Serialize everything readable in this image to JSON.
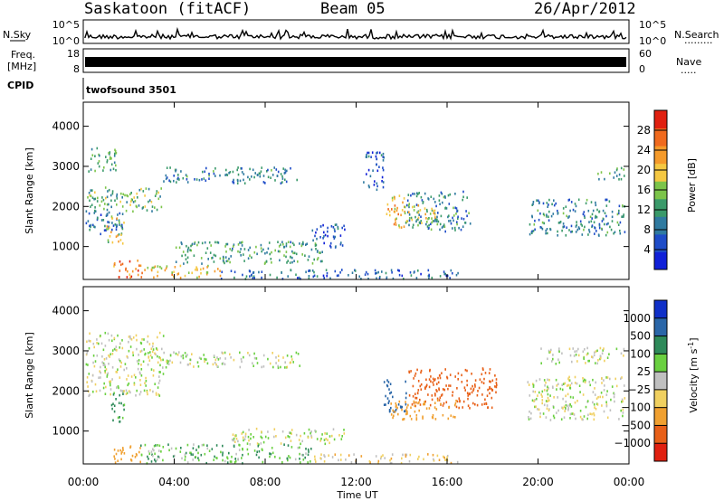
{
  "header": {
    "station": "Saskatoon (fitACF)",
    "beam": "Beam 05",
    "date": "26/Apr/2012"
  },
  "noise_panel": {
    "left_label": "N.Sky",
    "right_label": "N.Search",
    "right_dots": "·········",
    "left_ticks": [
      "10^5",
      "10^0"
    ],
    "right_ticks": [
      "10^5",
      "10^0"
    ]
  },
  "freq_panel": {
    "left_label_1": "Freq.",
    "left_label_2": "[MHz]",
    "right_label": "Nave",
    "right_dots": "·····",
    "left_ticks": [
      "18",
      "8"
    ],
    "right_ticks": [
      "60",
      "0"
    ]
  },
  "cpid_panel": {
    "label": "CPID",
    "value": "twofsound 3501"
  },
  "colors": {
    "power_scale": [
      "#1020d8",
      "#1e4cc8",
      "#2f7aa0",
      "#3a9a6a",
      "#7cc44a",
      "#f5c842",
      "#f59a2a",
      "#f06a1e",
      "#e02010"
    ],
    "velocity_scale": [
      "#1030c8",
      "#2a66a8",
      "#2e8a5a",
      "#6ad040",
      "#c0c0c0",
      "#f0d060",
      "#f0a030",
      "#e86018",
      "#e02010"
    ]
  },
  "chart_data": [
    {
      "type": "heatmap",
      "title": "",
      "ylabel": "Slant Range [km]",
      "xlabel": "",
      "ylim": [
        180,
        4600
      ],
      "yticks": [
        1000,
        2000,
        3000,
        4000
      ],
      "y_tick_labels": [
        "1000",
        "2000",
        "3000",
        "4000"
      ],
      "xlim": [
        0,
        24
      ],
      "colorbar": {
        "label": "Power [dB]",
        "range": [
          0,
          32
        ],
        "ticks": [
          4,
          8,
          12,
          16,
          20,
          24,
          28
        ],
        "tick_labels": [
          "4",
          "8",
          "12",
          "16",
          "20",
          "24",
          "28"
        ]
      },
      "regions": [
        {
          "t0": 0.2,
          "t1": 1.5,
          "r0": 2900,
          "r1": 3500,
          "power": 12
        },
        {
          "t0": 0.1,
          "t1": 3.5,
          "r0": 1900,
          "r1": 2500,
          "power": 14
        },
        {
          "t0": 0.1,
          "t1": 1.8,
          "r0": 1300,
          "r1": 1900,
          "power": 8
        },
        {
          "t0": 1.0,
          "t1": 1.8,
          "r0": 1100,
          "r1": 1800,
          "power": 18
        },
        {
          "t0": 1.3,
          "t1": 2.6,
          "r0": 250,
          "r1": 700,
          "power": 26
        },
        {
          "t0": 2.6,
          "t1": 6.0,
          "r0": 250,
          "r1": 550,
          "power": 20
        },
        {
          "t0": 6.0,
          "t1": 16.5,
          "r0": 220,
          "r1": 450,
          "power": 8
        },
        {
          "t0": 3.5,
          "t1": 9.5,
          "r0": 2600,
          "r1": 3000,
          "power": 10
        },
        {
          "t0": 4.0,
          "t1": 10.5,
          "r0": 600,
          "r1": 1150,
          "power": 12
        },
        {
          "t0": 10.0,
          "t1": 11.5,
          "r0": 1000,
          "r1": 1600,
          "power": 6
        },
        {
          "t0": 12.3,
          "t1": 13.2,
          "r0": 2400,
          "r1": 3400,
          "power": 6
        },
        {
          "t0": 13.3,
          "t1": 14.2,
          "r0": 1500,
          "r1": 2300,
          "power": 22
        },
        {
          "t0": 14.2,
          "t1": 17.0,
          "r0": 1400,
          "r1": 2400,
          "power": 10
        },
        {
          "t0": 14.0,
          "t1": 15.5,
          "r0": 1600,
          "r1": 2100,
          "power": 18
        },
        {
          "t0": 19.5,
          "t1": 23.8,
          "r0": 1300,
          "r1": 2200,
          "power": 10
        },
        {
          "t0": 22.6,
          "t1": 23.8,
          "r0": 2700,
          "r1": 3000,
          "power": 12
        }
      ]
    },
    {
      "type": "heatmap",
      "title": "",
      "ylabel": "Slant Range [km]",
      "xlabel": "Time UT",
      "ylim": [
        180,
        4600
      ],
      "yticks": [
        1000,
        2000,
        3000,
        4000
      ],
      "y_tick_labels": [
        "1000",
        "2000",
        "3000",
        "4000"
      ],
      "xlim": [
        0,
        24
      ],
      "x_tick_labels": [
        "00:00",
        "04:00",
        "08:00",
        "12:00",
        "16:00",
        "20:00",
        "00:00"
      ],
      "colorbar": {
        "label": "Velocity [m s^-1]",
        "range": [
          -1200,
          1200
        ],
        "ticks": [
          1000,
          500,
          100,
          25,
          -25,
          -100,
          -500,
          -1000
        ],
        "tick_labels": [
          "1000",
          "500",
          "100",
          "25",
          "−25",
          "−100",
          "−500",
          "−1000"
        ]
      },
      "regions": [
        {
          "t0": 0.1,
          "t1": 3.5,
          "r0": 1900,
          "r1": 3500,
          "velocity": 0
        },
        {
          "t0": 3.5,
          "t1": 9.5,
          "r0": 2600,
          "r1": 3000,
          "velocity": 0
        },
        {
          "t0": 6.5,
          "t1": 11.5,
          "r0": 700,
          "r1": 1100,
          "velocity": 0
        },
        {
          "t0": 1.2,
          "t1": 1.8,
          "r0": 1200,
          "r1": 2000,
          "velocity": 150
        },
        {
          "t0": 1.3,
          "t1": 2.5,
          "r0": 200,
          "r1": 700,
          "velocity": -300
        },
        {
          "t0": 2.5,
          "t1": 10.0,
          "r0": 220,
          "r1": 700,
          "velocity": 80
        },
        {
          "t0": 10.0,
          "t1": 16.5,
          "r0": 220,
          "r1": 450,
          "velocity": -60
        },
        {
          "t0": 13.2,
          "t1": 14.2,
          "r0": 1500,
          "r1": 2300,
          "velocity": 600
        },
        {
          "t0": 14.2,
          "t1": 18.2,
          "r0": 1600,
          "r1": 2600,
          "velocity": -700
        },
        {
          "t0": 13.5,
          "t1": 16.5,
          "r0": 1300,
          "r1": 1800,
          "velocity": -200
        },
        {
          "t0": 19.5,
          "t1": 23.8,
          "r0": 1300,
          "r1": 2400,
          "velocity": 0
        },
        {
          "t0": 20.0,
          "t1": 23.8,
          "r0": 2700,
          "r1": 3100,
          "velocity": 0
        }
      ]
    }
  ]
}
